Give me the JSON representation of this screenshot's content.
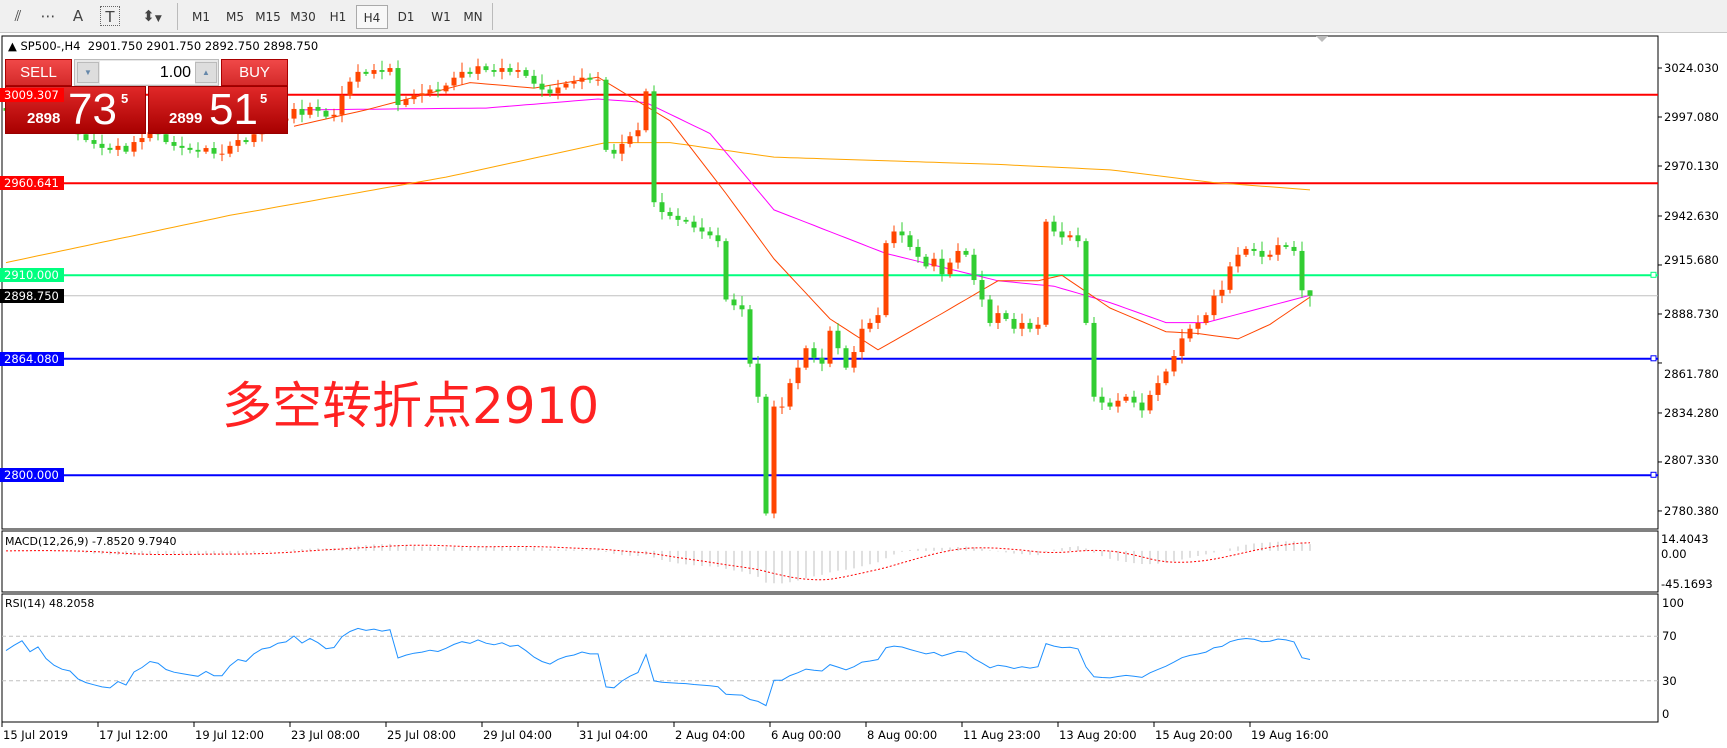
{
  "toolbar": {
    "icons": [
      "chart-elliott-icon",
      "fibonacci-icon",
      "text-icon",
      "text-label-icon",
      "arrows-dropdown-icon"
    ],
    "icon_glyphs": [
      "⫽",
      "⋯",
      "A",
      "T",
      "⬍"
    ],
    "timeframes": [
      "M1",
      "M5",
      "M15",
      "M30",
      "H1",
      "H4",
      "D1",
      "W1",
      "MN"
    ],
    "selected_timeframe": "H4"
  },
  "chart_header": {
    "symbol": "SP500-,H4",
    "ohlc": "2901.750 2901.750 2892.750 2898.750"
  },
  "trade_panel": {
    "sell_label": "SELL",
    "buy_label": "BUY",
    "volume": "1.00",
    "sell_price_prefix": "2898",
    "sell_price_big": "73",
    "sell_price_sup": "5",
    "buy_price_prefix": "2899",
    "buy_price_big": "51",
    "buy_price_sup": "5"
  },
  "annotation": "多空转折点2910",
  "colors": {
    "bull": "#ff4500",
    "bear": "#32cd32",
    "ma_slow": "#ffa500",
    "ma_mid": "#ff00ff",
    "ma_fast": "#ff4500",
    "rsi": "#1e90ff",
    "macd_hist": "#c0c0c0",
    "macd_signal": "#ff0000"
  },
  "chart_data": {
    "type": "candlestick",
    "symbol": "SP500-",
    "timeframe": "H4",
    "ylim": [
      2770,
      3035
    ],
    "price_ticks": [
      "3024.030",
      "2997.080",
      "2970.130",
      "2942.630",
      "2915.680",
      "2888.730",
      "2861.780",
      "2834.280",
      "2807.330",
      "2780.380"
    ],
    "time_labels": [
      "15 Jul 2019",
      "17 Jul 12:00",
      "19 Jul 12:00",
      "23 Jul 08:00",
      "25 Jul 08:00",
      "29 Jul 04:00",
      "31 Jul 04:00",
      "2 Aug 04:00",
      "6 Aug 00:00",
      "8 Aug 00:00",
      "11 Aug 23:00",
      "13 Aug 20:00",
      "15 Aug 20:00",
      "19 Aug 16:00"
    ],
    "closes": [
      3000.5,
      3002.6,
      3004.7,
      3001.5,
      3003.7,
      2999.4,
      2996.2,
      2994,
      2993,
      2987.6,
      2984.4,
      2982.3,
      2980.1,
      2979,
      2981.2,
      2978,
      2983.3,
      2985.5,
      2988.7,
      2987.6,
      2983.3,
      2981.2,
      2980.1,
      2979,
      2978,
      2980,
      2976.9,
      2976.9,
      2981.2,
      2984.4,
      2983.3,
      2987.6,
      2990.8,
      2991.9,
      2995.1,
      2996.2,
      3001.5,
      2998.3,
      3002.6,
      3000.5,
      2997.3,
      2998.3,
      3009,
      3016.5,
      3021.9,
      3020.8,
      3022.9,
      3021.9,
      3024,
      3003.7,
      3006.9,
      3009,
      3010.1,
      3012.2,
      3011.2,
      3014.4,
      3018.7,
      3021.9,
      3020.8,
      3025,
      3022.9,
      3021.9,
      3024,
      3021.9,
      3022.9,
      3019.7,
      3015.4,
      3012.2,
      3010.1,
      3013.3,
      3015.4,
      3016.5,
      3018.7,
      3017.6,
      3017.6,
      2979,
      2976.9,
      2982.3,
      2986.5,
      2989.8,
      3011.2,
      2950.2,
      2944.8,
      2942.7,
      2940.5,
      2939.5,
      2936.3,
      2934.1,
      2932,
      2928.8,
      2896.7,
      2893.5,
      2891.3,
      2861.4,
      2843.2,
      2779,
      2837.8,
      2837.8,
      2850.7,
      2859.2,
      2869.9,
      2864.6,
      2861.4,
      2879.5,
      2869.9,
      2859.2,
      2867.8,
      2880.6,
      2883.8,
      2888.1,
      2927.7,
      2934.1,
      2932,
      2925.6,
      2920.2,
      2914.9,
      2919.1,
      2910.6,
      2917,
      2923.4,
      2921.3,
      2907.4,
      2896.7,
      2883.8,
      2889.2,
      2886,
      2880.6,
      2883.8,
      2880.6,
      2882.8,
      2939.5,
      2934.1,
      2930.9,
      2932,
      2928.8,
      2883.8,
      2843.2,
      2840,
      2837.8,
      2841,
      2843.2,
      2840,
      2835.7,
      2844.2,
      2850.7,
      2857.1,
      2865.6,
      2875.3,
      2880.6,
      2883.8,
      2888.1,
      2898.8,
      2902,
      2914.9,
      2921.3,
      2924.5,
      2923.4,
      2920.2,
      2921.3,
      2926.6,
      2925.6,
      2923.4,
      2901.75,
      2898.75
    ],
    "last_bar": {
      "open": 2901.75,
      "high": 2901.75,
      "low": 2892.75,
      "close": 2898.75
    },
    "moving_averages": [
      {
        "color": "#ffa500",
        "points": [
          [
            0,
            2917
          ],
          [
            28,
            2943
          ],
          [
            55,
            2964
          ],
          [
            75,
            2983
          ],
          [
            83,
            2983
          ],
          [
            96,
            2975
          ],
          [
            124,
            2971
          ],
          [
            138,
            2968
          ],
          [
            151,
            2961
          ],
          [
            163,
            2957
          ]
        ]
      },
      {
        "color": "#ff00ff",
        "points": [
          [
            37,
            3001
          ],
          [
            60,
            3002
          ],
          [
            74,
            3007
          ],
          [
            80,
            3005
          ],
          [
            88,
            2988
          ],
          [
            96,
            2946
          ],
          [
            110,
            2922
          ],
          [
            124,
            2907
          ],
          [
            131,
            2904
          ],
          [
            138,
            2895
          ],
          [
            145,
            2884
          ],
          [
            150,
            2884
          ],
          [
            163,
            2899
          ]
        ]
      },
      {
        "color": "#ff4500",
        "points": [
          [
            36,
            2992
          ],
          [
            45,
            3001
          ],
          [
            58,
            3016
          ],
          [
            66,
            3013
          ],
          [
            74,
            3019
          ],
          [
            83,
            2995
          ],
          [
            90,
            2955
          ],
          [
            96,
            2919
          ],
          [
            103,
            2886
          ],
          [
            109,
            2869
          ],
          [
            117,
            2889
          ],
          [
            124,
            2907
          ],
          [
            129,
            2907
          ],
          [
            132,
            2910
          ],
          [
            138,
            2892
          ],
          [
            145,
            2879
          ],
          [
            149,
            2878
          ],
          [
            154,
            2875
          ],
          [
            158,
            2883
          ],
          [
            163,
            2898
          ]
        ]
      }
    ],
    "levels": [
      {
        "price": 3009.307,
        "label": "3009.307",
        "color": "#ff0000"
      },
      {
        "price": 2960.641,
        "label": "2960.641",
        "color": "#ff0000"
      },
      {
        "price": 2910.0,
        "label": "2910.000",
        "color": "#00ff7f"
      },
      {
        "price": 2864.08,
        "label": "2864.080",
        "color": "#0000ff"
      },
      {
        "price": 2800.0,
        "label": "2800.000",
        "color": "#0000ff"
      }
    ],
    "bid": {
      "price": 2898.75,
      "label": "2898.750"
    },
    "macd": {
      "label": "MACD(12,26,9) -7.8520 9.7940",
      "ticks": [
        "14.4043",
        "0.00",
        "-45.1693"
      ],
      "range": [
        -45.1693,
        14.4043
      ]
    },
    "rsi": {
      "label": "RSI(14) 48.2058",
      "ticks": [
        "100",
        "70",
        "30",
        "0"
      ],
      "levels": [
        70,
        30
      ]
    }
  }
}
